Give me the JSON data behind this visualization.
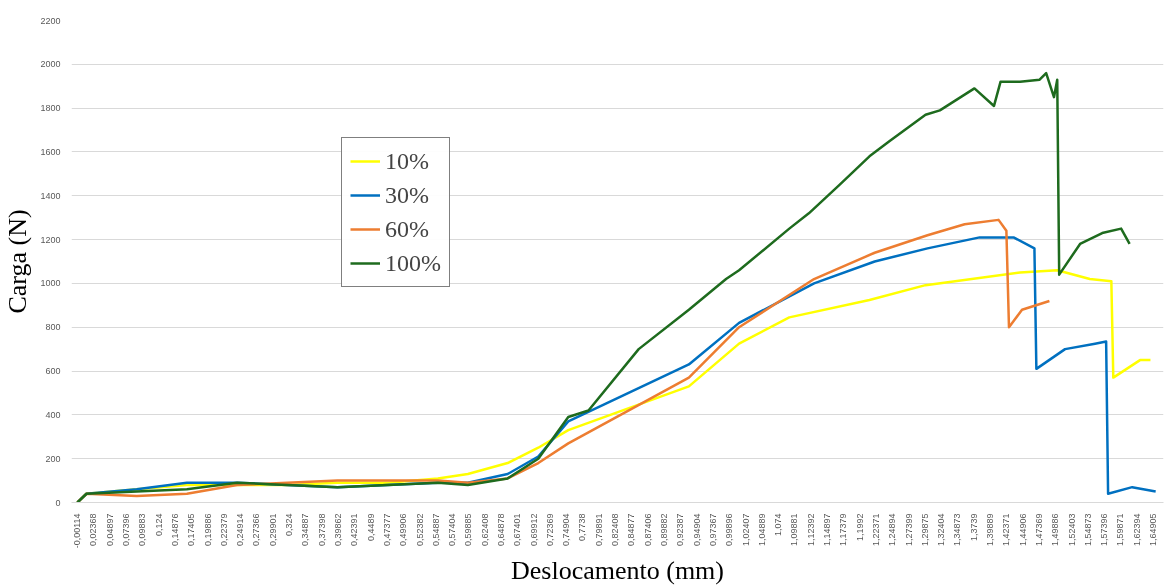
{
  "chart_data": {
    "type": "line",
    "xlabel": "Deslocamento (mm)",
    "ylabel": "Carga (N)",
    "legend": "top left",
    "grid": "y",
    "marker": "none",
    "line_style": "solid",
    "xlim": [
      -0.01,
      1.665
    ],
    "ylim": [
      0,
      2200
    ],
    "yticks": [
      0,
      200,
      400,
      600,
      800,
      1000,
      1200,
      1400,
      1600,
      1800,
      2000,
      2200
    ],
    "xticks": [
      {
        "value": -0.00114,
        "label": "-0,00114"
      },
      {
        "value": 0.02368,
        "label": "0,02368"
      },
      {
        "value": 0.04897,
        "label": "0,04897"
      },
      {
        "value": 0.07396,
        "label": "0,07396"
      },
      {
        "value": 0.09883,
        "label": "0,09883"
      },
      {
        "value": 0.124,
        "label": "0,124"
      },
      {
        "value": 0.14876,
        "label": "0,14876"
      },
      {
        "value": 0.17405,
        "label": "0,17405"
      },
      {
        "value": 0.19886,
        "label": "0,19886"
      },
      {
        "value": 0.22379,
        "label": "0,22379"
      },
      {
        "value": 0.24914,
        "label": "0,24914"
      },
      {
        "value": 0.27366,
        "label": "0,27366"
      },
      {
        "value": 0.29901,
        "label": "0,29901"
      },
      {
        "value": 0.324,
        "label": "0,324"
      },
      {
        "value": 0.34887,
        "label": "0,34887"
      },
      {
        "value": 0.37398,
        "label": "0,37398"
      },
      {
        "value": 0.39862,
        "label": "0,39862"
      },
      {
        "value": 0.42391,
        "label": "0,42391"
      },
      {
        "value": 0.4489,
        "label": "0,4489"
      },
      {
        "value": 0.47377,
        "label": "0,47377"
      },
      {
        "value": 0.49906,
        "label": "0,49906"
      },
      {
        "value": 0.52382,
        "label": "0,52382"
      },
      {
        "value": 0.54887,
        "label": "0,54887"
      },
      {
        "value": 0.57404,
        "label": "0,57404"
      },
      {
        "value": 0.59885,
        "label": "0,59885"
      },
      {
        "value": 0.62408,
        "label": "0,62408"
      },
      {
        "value": 0.64878,
        "label": "0,64878"
      },
      {
        "value": 0.67401,
        "label": "0,67401"
      },
      {
        "value": 0.69912,
        "label": "0,69912"
      },
      {
        "value": 0.72369,
        "label": "0,72369"
      },
      {
        "value": 0.74904,
        "label": "0,74904"
      },
      {
        "value": 0.7738,
        "label": "0,7738"
      },
      {
        "value": 0.79891,
        "label": "0,79891"
      },
      {
        "value": 0.82408,
        "label": "0,82408"
      },
      {
        "value": 0.84877,
        "label": "0,84877"
      },
      {
        "value": 0.87406,
        "label": "0,87406"
      },
      {
        "value": 0.89882,
        "label": "0,89882"
      },
      {
        "value": 0.92387,
        "label": "0,92387"
      },
      {
        "value": 0.94904,
        "label": "0,94904"
      },
      {
        "value": 0.97367,
        "label": "0,97367"
      },
      {
        "value": 0.99896,
        "label": "0,99896"
      },
      {
        "value": 1.02407,
        "label": "1,02407"
      },
      {
        "value": 1.04889,
        "label": "1,04889"
      },
      {
        "value": 1.074,
        "label": "1,074"
      },
      {
        "value": 1.09881,
        "label": "1,09881"
      },
      {
        "value": 1.12392,
        "label": "1,12392"
      },
      {
        "value": 1.14897,
        "label": "1,14897"
      },
      {
        "value": 1.17379,
        "label": "1,17379"
      },
      {
        "value": 1.1992,
        "label": "1,1992"
      },
      {
        "value": 1.22371,
        "label": "1,22371"
      },
      {
        "value": 1.24894,
        "label": "1,24894"
      },
      {
        "value": 1.27399,
        "label": "1,27399"
      },
      {
        "value": 1.29875,
        "label": "1,29875"
      },
      {
        "value": 1.32404,
        "label": "1,32404"
      },
      {
        "value": 1.34873,
        "label": "1,34873"
      },
      {
        "value": 1.3739,
        "label": "1,3739"
      },
      {
        "value": 1.39889,
        "label": "1,39889"
      },
      {
        "value": 1.42371,
        "label": "1,42371"
      },
      {
        "value": 1.44906,
        "label": "1,44906"
      },
      {
        "value": 1.47369,
        "label": "1,47369"
      },
      {
        "value": 1.49886,
        "label": "1,49886"
      },
      {
        "value": 1.52403,
        "label": "1,52403"
      },
      {
        "value": 1.54873,
        "label": "1,54873"
      },
      {
        "value": 1.57396,
        "label": "1,57396"
      },
      {
        "value": 1.59871,
        "label": "1,59871"
      },
      {
        "value": 1.62394,
        "label": "1,62394"
      },
      {
        "value": 1.64905,
        "label": "1,64905"
      }
    ],
    "series": [
      {
        "name": "10%",
        "color": "#ffff00",
        "x": [
          -0.001,
          0.013,
          0.09,
          0.167,
          0.244,
          0.321,
          0.398,
          0.475,
          0.552,
          0.598,
          0.659,
          0.706,
          0.752,
          0.937,
          1.014,
          1.091,
          1.214,
          1.3,
          1.445,
          1.502,
          1.552,
          1.585,
          1.588,
          1.629,
          1.645
        ],
        "values": [
          0,
          40,
          60,
          80,
          80,
          80,
          90,
          90,
          110,
          130,
          180,
          250,
          330,
          530,
          725,
          845,
          924,
          992,
          1050,
          1060,
          1020,
          1010,
          570,
          650,
          650
        ]
      },
      {
        "name": "30%",
        "color": "#0070c0",
        "x": [
          -0.001,
          0.013,
          0.09,
          0.167,
          0.244,
          0.321,
          0.398,
          0.475,
          0.552,
          0.598,
          0.659,
          0.706,
          0.752,
          0.937,
          1.014,
          1.129,
          1.222,
          1.303,
          1.383,
          1.435,
          1.467,
          1.47,
          1.514,
          1.56,
          1.577,
          1.58,
          1.617,
          1.653
        ],
        "values": [
          0,
          40,
          60,
          90,
          90,
          80,
          70,
          80,
          90,
          90,
          130,
          210,
          370,
          630,
          820,
          1000,
          1100,
          1160,
          1210,
          1210,
          1160,
          610,
          700,
          725,
          735,
          40,
          70,
          50
        ]
      },
      {
        "name": "60%",
        "color": "#ed7d31",
        "x": [
          -0.001,
          0.013,
          0.09,
          0.167,
          0.244,
          0.321,
          0.398,
          0.475,
          0.552,
          0.598,
          0.659,
          0.706,
          0.752,
          0.937,
          1.014,
          1.129,
          1.222,
          1.303,
          1.36,
          1.412,
          1.424,
          1.428,
          1.448,
          1.49
        ],
        "values": [
          0,
          40,
          30,
          40,
          80,
          90,
          100,
          100,
          100,
          90,
          110,
          180,
          270,
          570,
          800,
          1020,
          1140,
          1220,
          1270,
          1290,
          1240,
          800,
          880,
          920
        ]
      },
      {
        "name": "100%",
        "color": "#1e6b1e",
        "x": [
          -0.001,
          0.013,
          0.09,
          0.167,
          0.244,
          0.321,
          0.398,
          0.475,
          0.552,
          0.598,
          0.659,
          0.706,
          0.752,
          0.783,
          0.86,
          0.937,
          0.994,
          1.014,
          1.091,
          1.121,
          1.168,
          1.214,
          1.245,
          1.3,
          1.322,
          1.375,
          1.405,
          1.415,
          1.445,
          1.475,
          1.485,
          1.497,
          1.502,
          1.505,
          1.537,
          1.571,
          1.6,
          1.613
        ],
        "values": [
          0,
          40,
          50,
          60,
          90,
          80,
          70,
          80,
          90,
          80,
          110,
          200,
          390,
          420,
          700,
          880,
          1020,
          1060,
          1250,
          1320,
          1450,
          1580,
          1650,
          1770,
          1790,
          1890,
          1810,
          1920,
          1920,
          1930,
          1960,
          1850,
          1930,
          1040,
          1180,
          1230,
          1250,
          1180
        ]
      }
    ]
  }
}
